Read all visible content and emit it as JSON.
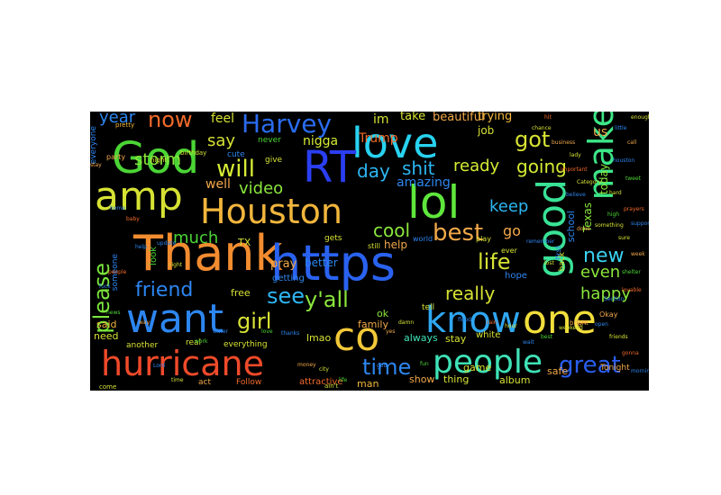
{
  "cloud": {
    "background": "#000000",
    "words": [
      {
        "text": "Thank",
        "color": "#f28c30"
      },
      {
        "text": "https",
        "color": "#2a62f0"
      },
      {
        "text": "Houston",
        "color": "#f2b63c"
      },
      {
        "text": "God",
        "color": "#4bd535"
      },
      {
        "text": "love",
        "color": "#28d2f0"
      },
      {
        "text": "RT",
        "color": "#2a3ef2"
      },
      {
        "text": "lol",
        "color": "#5fe63c"
      },
      {
        "text": "make",
        "color": "#3ce687"
      },
      {
        "text": "good",
        "color": "#39e296"
      },
      {
        "text": "amp",
        "color": "#d6e233"
      },
      {
        "text": "want",
        "color": "#2d86f0"
      },
      {
        "text": "hurricane",
        "color": "#f04a2a"
      },
      {
        "text": "co",
        "color": "#f2c838"
      },
      {
        "text": "one",
        "color": "#f2de3c"
      },
      {
        "text": "know",
        "color": "#2fa7f2"
      },
      {
        "text": "people",
        "color": "#3ee2b6"
      },
      {
        "text": "Harvey",
        "color": "#2a6cf0"
      },
      {
        "text": "will",
        "color": "#d6ec34"
      },
      {
        "text": "friend",
        "color": "#2d86f0"
      },
      {
        "text": "see",
        "color": "#2db6f2"
      },
      {
        "text": "best",
        "color": "#f2a84a"
      },
      {
        "text": "please",
        "color": "#7be63c"
      },
      {
        "text": "time",
        "color": "#2d86f0"
      },
      {
        "text": "great",
        "color": "#2a5ef0"
      },
      {
        "text": "new",
        "color": "#39d2f0"
      },
      {
        "text": "now",
        "color": "#f26a2a"
      },
      {
        "text": "got",
        "color": "#d6e233"
      },
      {
        "text": "day",
        "color": "#2db6f2"
      },
      {
        "text": "shit",
        "color": "#2db6f2"
      },
      {
        "text": "life",
        "color": "#d6e233"
      },
      {
        "text": "y'all",
        "color": "#8ae63c"
      },
      {
        "text": "girl",
        "color": "#d6e233"
      },
      {
        "text": "going",
        "color": "#d6ec34"
      },
      {
        "text": "video",
        "color": "#8ae63c"
      },
      {
        "text": "year",
        "color": "#2d86f0"
      },
      {
        "text": "say",
        "color": "#d6e233"
      },
      {
        "text": "storm",
        "color": "#8ae63c"
      },
      {
        "text": "much",
        "color": "#4bd535"
      },
      {
        "text": "cool",
        "color": "#8ae63c"
      },
      {
        "text": "really",
        "color": "#d6e233"
      },
      {
        "text": "happy",
        "color": "#8ae63c"
      },
      {
        "text": "even",
        "color": "#8ae63c"
      },
      {
        "text": "keep",
        "color": "#2db6f2"
      },
      {
        "text": "ready",
        "color": "#d6ec34"
      },
      {
        "text": "go",
        "color": "#f2a84a"
      },
      {
        "text": "amazing",
        "color": "#2d86f0"
      },
      {
        "text": "Trump",
        "color": "#f26a2a"
      },
      {
        "text": "nigga",
        "color": "#d6ec34"
      },
      {
        "text": "feel",
        "color": "#d6e233"
      },
      {
        "text": "well",
        "color": "#f2a84a"
      },
      {
        "text": "im",
        "color": "#d6e233"
      },
      {
        "text": "job",
        "color": "#d6e233"
      },
      {
        "text": "us",
        "color": "#f2a84a"
      },
      {
        "text": "today",
        "color": "#8ae63c"
      },
      {
        "text": "Texas",
        "color": "#8ae63c"
      },
      {
        "text": "school",
        "color": "#2d86f0"
      },
      {
        "text": "beautiful",
        "color": "#f2a84a"
      },
      {
        "text": "trying",
        "color": "#f2b63c"
      },
      {
        "text": "take",
        "color": "#d6e233"
      },
      {
        "text": "better",
        "color": "#2d86f0"
      },
      {
        "text": "help",
        "color": "#f2a84a"
      },
      {
        "text": "pray",
        "color": "#f2a84a"
      },
      {
        "text": "TX",
        "color": "#d6e233"
      },
      {
        "text": "free",
        "color": "#d6e233"
      },
      {
        "text": "said",
        "color": "#f2b63c"
      },
      {
        "text": "need",
        "color": "#d6e233"
      },
      {
        "text": "lmao",
        "color": "#d6e233"
      },
      {
        "text": "ok",
        "color": "#8ae63c"
      },
      {
        "text": "family",
        "color": "#f2a84a"
      },
      {
        "text": "always",
        "color": "#3ee2b6"
      },
      {
        "text": "stay",
        "color": "#d6e233"
      },
      {
        "text": "game",
        "color": "#d6e233"
      },
      {
        "text": "white",
        "color": "#d6e233"
      },
      {
        "text": "hope",
        "color": "#2d86f0"
      },
      {
        "text": "safe",
        "color": "#f2a84a"
      },
      {
        "text": "thing",
        "color": "#d6e233"
      },
      {
        "text": "album",
        "color": "#d6e233"
      },
      {
        "text": "show",
        "color": "#f2a84a"
      },
      {
        "text": "man",
        "color": "#f2b63c"
      },
      {
        "text": "attractive",
        "color": "#f26a2a"
      },
      {
        "text": "Follow",
        "color": "#f26a2a"
      },
      {
        "text": "act",
        "color": "#f2a84a"
      },
      {
        "text": "another",
        "color": "#d6e233"
      },
      {
        "text": "real",
        "color": "#d6e233"
      },
      {
        "text": "everything",
        "color": "#d6e233"
      },
      {
        "text": "someone",
        "color": "#2d86f0"
      },
      {
        "text": "tell",
        "color": "#d6e233"
      },
      {
        "text": "getting",
        "color": "#2d86f0"
      },
      {
        "text": "look",
        "color": "#4bd535"
      },
      {
        "text": "never",
        "color": "#4bd535"
      },
      {
        "text": "cute",
        "color": "#2d86f0"
      },
      {
        "text": "give",
        "color": "#d6e233"
      },
      {
        "text": "gets",
        "color": "#d6e233"
      },
      {
        "text": "Okay",
        "color": "#f2a84a"
      },
      {
        "text": "Tonight",
        "color": "#f2a84a"
      },
      {
        "text": "back",
        "color": "#d6e233"
      },
      {
        "text": "everyone",
        "color": "#2d86f0"
      },
      {
        "text": "pretty",
        "color": "#f2b63c"
      },
      {
        "text": "party",
        "color": "#f2a84a"
      },
      {
        "text": "night",
        "color": "#d6e233"
      },
      {
        "text": "birthday",
        "color": "#d6e233"
      },
      {
        "text": "ever",
        "color": "#d6e233"
      },
      {
        "text": "play",
        "color": "#d6e233"
      },
      {
        "text": "still",
        "color": "#d6e233"
      },
      {
        "text": "world",
        "color": "#2d86f0"
      },
      {
        "text": "first",
        "color": "#2d86f0"
      },
      {
        "text": "come",
        "color": "#d6e233"
      },
      {
        "text": "ain't",
        "color": "#d6e233"
      },
      {
        "text": "bright",
        "color": "#f2a84a"
      },
      {
        "text": "stay",
        "color": "#f2a84a"
      },
      {
        "text": "home",
        "color": "#2d86f0"
      },
      {
        "text": "baby",
        "color": "#f26a2a"
      },
      {
        "text": "help",
        "color": "#2d86f0"
      },
      {
        "text": "update",
        "color": "#2d86f0"
      },
      {
        "text": "right",
        "color": "#d6e233"
      },
      {
        "text": "people",
        "color": "#f26a2a"
      },
      {
        "text": "fuck",
        "color": "#2d86f0"
      },
      {
        "text": "news",
        "color": "#4bd535"
      },
      {
        "text": "way",
        "color": "#f2a84a"
      },
      {
        "text": "Lord",
        "color": "#2d86f0"
      },
      {
        "text": "time",
        "color": "#d6e233"
      },
      {
        "text": "work",
        "color": "#4bd535"
      },
      {
        "text": "water",
        "color": "#2d86f0"
      },
      {
        "text": "love",
        "color": "#4bd535"
      },
      {
        "text": "thanks",
        "color": "#2d86f0"
      },
      {
        "text": "money",
        "color": "#f2a84a"
      },
      {
        "text": "city",
        "color": "#d6e233"
      },
      {
        "text": "life",
        "color": "#4bd535"
      },
      {
        "text": "god",
        "color": "#2d86f0"
      },
      {
        "text": "yes",
        "color": "#f2a84a"
      },
      {
        "text": "damn",
        "color": "#d6e233"
      },
      {
        "text": "fun",
        "color": "#4bd535"
      },
      {
        "text": "flood",
        "color": "#2d86f0"
      },
      {
        "text": "rain",
        "color": "#f26a2a"
      },
      {
        "text": "hour",
        "color": "#d6e233"
      },
      {
        "text": "wait",
        "color": "#2d86f0"
      },
      {
        "text": "best",
        "color": "#4bd535"
      },
      {
        "text": "weekend",
        "color": "#d6e233"
      },
      {
        "text": "live",
        "color": "#f2a84a"
      },
      {
        "text": "open",
        "color": "#2d86f0"
      },
      {
        "text": "friends",
        "color": "#d6e233"
      },
      {
        "text": "gonna",
        "color": "#f26a2a"
      },
      {
        "text": "morning",
        "color": "#2d86f0"
      },
      {
        "text": "shelter",
        "color": "#4bd535"
      },
      {
        "text": "week",
        "color": "#f2a84a"
      },
      {
        "text": "sure",
        "color": "#d6e233"
      },
      {
        "text": "support",
        "color": "#2d86f0"
      },
      {
        "text": "prayers",
        "color": "#f26a2a"
      },
      {
        "text": "hard",
        "color": "#d6e233"
      },
      {
        "text": "tweet",
        "color": "#4bd535"
      },
      {
        "text": "houston",
        "color": "#2d86f0"
      },
      {
        "text": "call",
        "color": "#f2a84a"
      },
      {
        "text": "little",
        "color": "#2d86f0"
      },
      {
        "text": "enough",
        "color": "#d6e233"
      },
      {
        "text": "hit",
        "color": "#f26a2a"
      },
      {
        "text": "chance",
        "color": "#d6e233"
      },
      {
        "text": "business",
        "color": "#f2a84a"
      },
      {
        "text": "lady",
        "color": "#d6e233"
      },
      {
        "text": "important",
        "color": "#f26a2a"
      },
      {
        "text": "Category",
        "color": "#d6e233"
      },
      {
        "text": "believe",
        "color": "#2d86f0"
      },
      {
        "text": "something",
        "color": "#d6e233"
      },
      {
        "text": "high",
        "color": "#4bd535"
      },
      {
        "text": "done",
        "color": "#f2a84a"
      },
      {
        "text": "remember",
        "color": "#2d86f0"
      },
      {
        "text": "lost",
        "color": "#d6e233"
      },
      {
        "text": "lovable",
        "color": "#f26a2a"
      },
      {
        "text": "Section",
        "color": "#2d86f0"
      },
      {
        "text": "stuff",
        "color": "#d6e233"
      },
      {
        "text": "playing",
        "color": "#2d86f0"
      },
      {
        "text": "funny",
        "color": "#4bd535"
      },
      {
        "text": "feeling",
        "color": "#d6e233"
      },
      {
        "text": "guy",
        "color": "#f2a84a"
      },
      {
        "text": "HurricaneHarvey",
        "color": "#2d86f0"
      },
      {
        "text": "LOL",
        "color": "#2d86f0"
      },
      {
        "text": "everything",
        "color": "#4bd535"
      }
    ]
  }
}
